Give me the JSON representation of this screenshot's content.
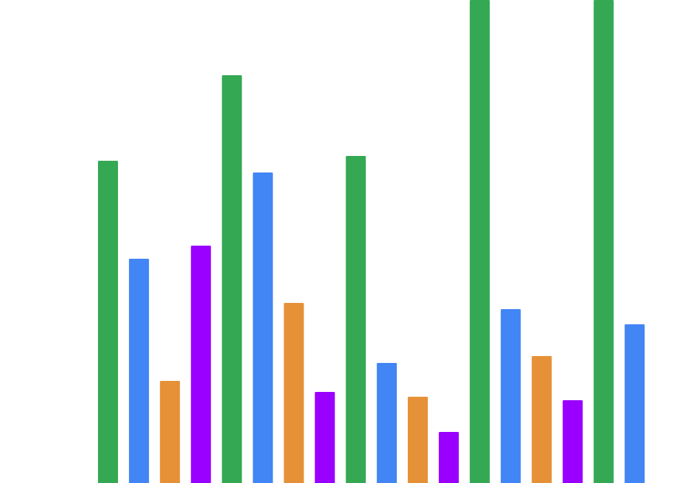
{
  "chart_data": {
    "type": "bar",
    "bars": [
      {
        "value": 467,
        "color": "#34A853"
      },
      {
        "value": 325,
        "color": "#4285F4"
      },
      {
        "value": 148,
        "color": "#E69138"
      },
      {
        "value": 344,
        "color": "#9900FF"
      },
      {
        "value": 591,
        "color": "#34A853"
      },
      {
        "value": 450,
        "color": "#4285F4"
      },
      {
        "value": 261,
        "color": "#E69138"
      },
      {
        "value": 132,
        "color": "#9900FF"
      },
      {
        "value": 474,
        "color": "#34A853"
      },
      {
        "value": 174,
        "color": "#4285F4"
      },
      {
        "value": 125,
        "color": "#E69138"
      },
      {
        "value": 74,
        "color": "#9900FF"
      },
      {
        "value": 700,
        "color": "#34A853"
      },
      {
        "value": 252,
        "color": "#4285F4"
      },
      {
        "value": 184,
        "color": "#E69138"
      },
      {
        "value": 120,
        "color": "#9900FF"
      },
      {
        "value": 700,
        "color": "#34A853"
      },
      {
        "value": 230,
        "color": "#4285F4"
      }
    ],
    "ylim": [
      0,
      700
    ],
    "grid": false,
    "legend": "none"
  }
}
